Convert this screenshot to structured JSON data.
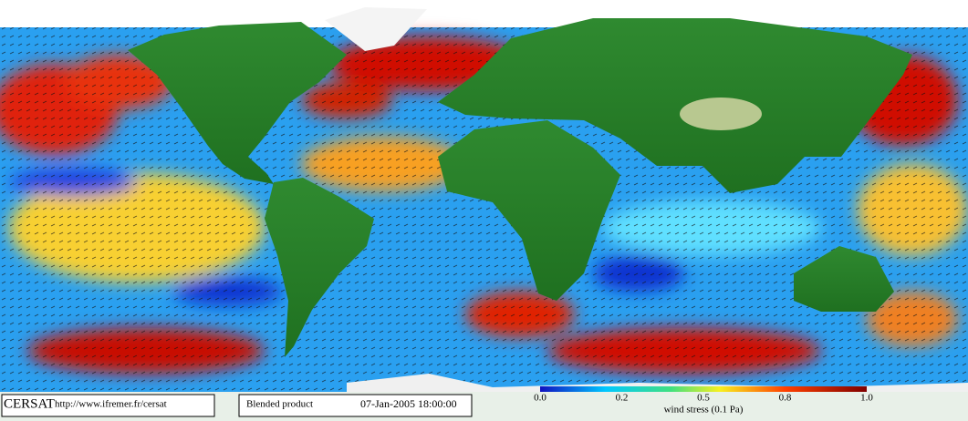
{
  "footer": {
    "logo": "CERSAT",
    "url": "http://www.ifremer.fr/cersat",
    "product": "Blended product",
    "date": "07-Jan-2005 18:00:00"
  },
  "colorbar": {
    "ticks": [
      "0.0",
      "0.2",
      "0.5",
      "0.8",
      "1.0"
    ],
    "label": "wind stress (0.1 Pa)"
  }
}
